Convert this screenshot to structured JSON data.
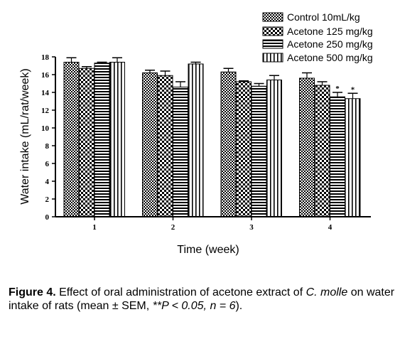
{
  "chart_data": {
    "type": "bar",
    "title": "",
    "xlabel": "Time (week)",
    "ylabel": "Water intake (mL/rat/week)",
    "categories": [
      "1",
      "2",
      "3",
      "4"
    ],
    "ylim": [
      0,
      18
    ],
    "yticks": [
      "0",
      "2",
      "4",
      "6",
      "8",
      "10",
      "12",
      "14",
      "16",
      "18"
    ],
    "legend_position": "top-right",
    "error_bars": true,
    "series": [
      {
        "name": "Control 10mL/kg",
        "pattern": "checker-fine",
        "values": [
          17.4,
          16.2,
          16.3,
          15.6
        ],
        "errors": [
          0.5,
          0.3,
          0.4,
          0.6
        ],
        "markers": [
          "",
          "",
          "",
          ""
        ]
      },
      {
        "name": "Acetone 125 mg/kg",
        "pattern": "checker-coarse",
        "values": [
          16.7,
          15.9,
          15.2,
          14.8
        ],
        "errors": [
          0.2,
          0.5,
          0.1,
          0.4
        ],
        "markers": [
          "",
          "",
          "",
          ""
        ]
      },
      {
        "name": "Acetone 250 mg/kg",
        "pattern": "horizontal-lines",
        "values": [
          17.3,
          14.6,
          14.7,
          13.5
        ],
        "errors": [
          0.1,
          0.6,
          0.3,
          0.5
        ],
        "markers": [
          "",
          "",
          "",
          "*"
        ]
      },
      {
        "name": "Acetone 500 mg/kg",
        "pattern": "vertical-lines",
        "values": [
          17.4,
          17.2,
          15.4,
          13.3
        ],
        "errors": [
          0.5,
          0.2,
          0.5,
          0.6
        ],
        "markers": [
          "",
          "",
          "",
          "*"
        ]
      }
    ]
  },
  "caption": {
    "label": "Figure 4.",
    "text_1": " Effect of oral administration of acetone extract of ",
    "species": "C. molle",
    "text_2": " on water intake of rats (mean ± SEM, ",
    "stats": "**P < 0.05, n = 6",
    "text_3": ")."
  }
}
